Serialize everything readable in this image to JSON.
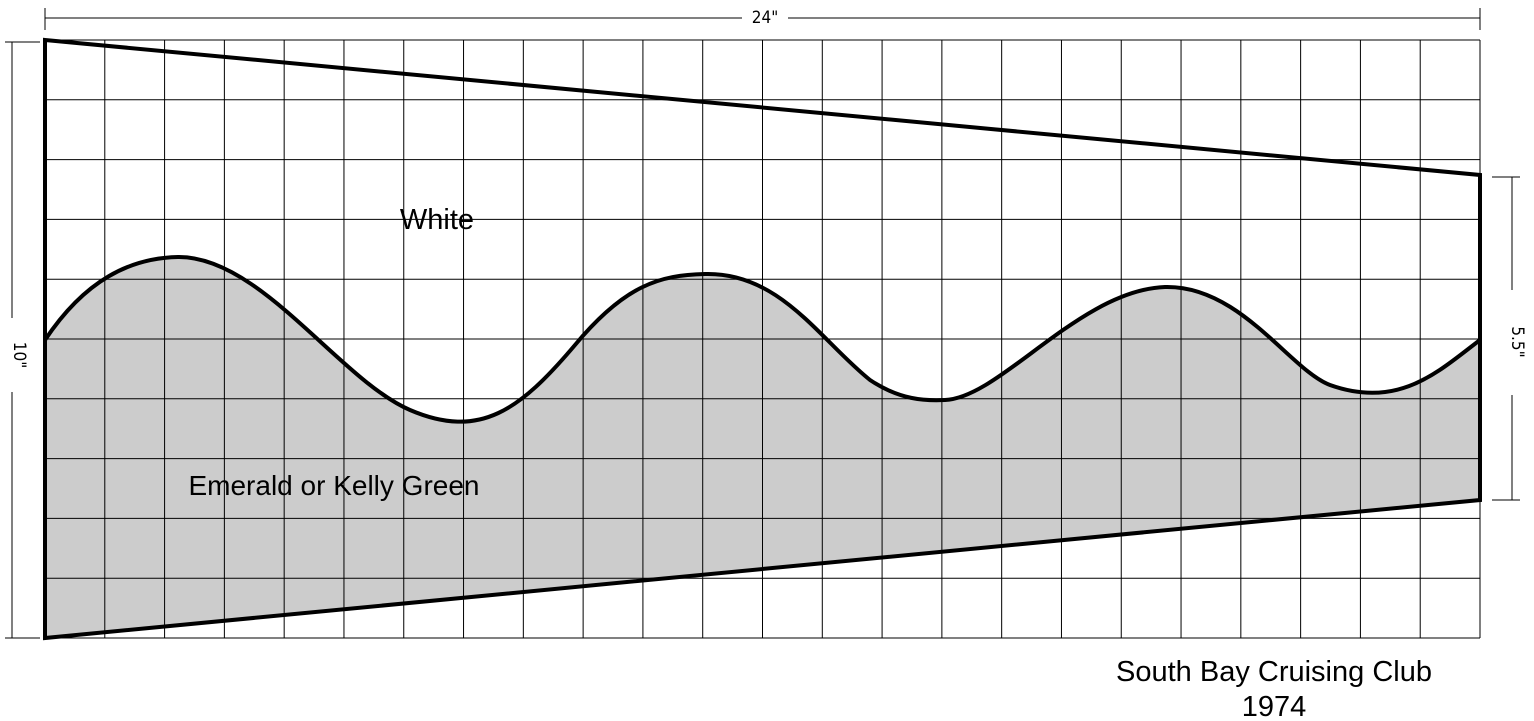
{
  "diagram": {
    "dimensions": {
      "width": "24\"",
      "height_left": "10\"",
      "height_right": "5.5\""
    },
    "regions": {
      "upper": "White",
      "lower": "Emerald or Kelly Green"
    },
    "colors": {
      "upper_fill": "#ffffff",
      "lower_fill": "#cccccc",
      "outline": "#000000",
      "grid": "#000000"
    },
    "caption": {
      "line1": "South Bay Cruising Club",
      "line2": "1974"
    }
  }
}
